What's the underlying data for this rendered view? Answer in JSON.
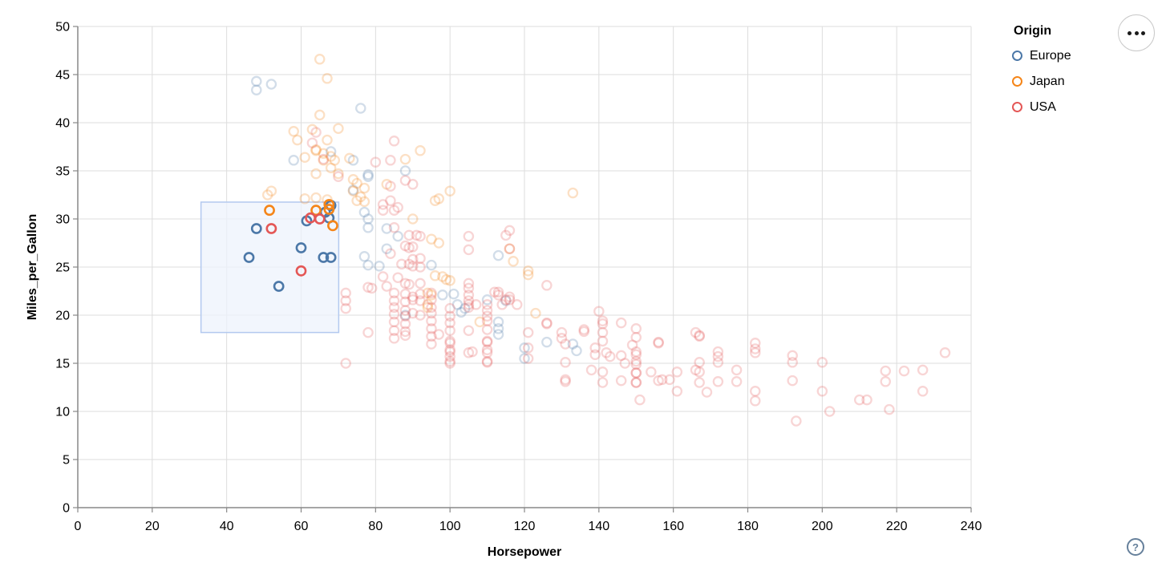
{
  "controls": {
    "menu_button": "actions-menu",
    "help_label": "?"
  },
  "chart_data": {
    "type": "scatter",
    "title": "",
    "xlabel": "Horsepower",
    "ylabel": "Miles_per_Gallon",
    "xlim": [
      0,
      240
    ],
    "ylim": [
      0,
      50
    ],
    "x_ticks": [
      0,
      20,
      40,
      60,
      80,
      100,
      120,
      140,
      160,
      180,
      200,
      220,
      240
    ],
    "y_ticks": [
      0,
      5,
      10,
      15,
      20,
      25,
      30,
      35,
      40,
      45,
      50
    ],
    "grid": true,
    "legend_title": "Origin",
    "legend_position": "top-right",
    "point_shape": "open-circle",
    "unselected_opacity": 0.25,
    "brush_selection": {
      "x": [
        33.1,
        70.1
      ],
      "y": [
        18.2,
        31.75
      ],
      "fill": "#edf3fc",
      "stroke": "#b3c9ef"
    },
    "colors": {
      "grid": "#dddddd",
      "axis": "#888888",
      "text": "#000000"
    },
    "series": [
      {
        "name": "Europe",
        "color": "#4c78a8",
        "selected_points": [
          [
            46,
            26
          ],
          [
            48,
            29
          ],
          [
            54,
            23
          ],
          [
            60,
            27
          ],
          [
            61.5,
            29.8
          ],
          [
            66,
            26
          ],
          [
            68,
            26
          ],
          [
            66.5,
            30.7
          ],
          [
            67.5,
            30.1
          ],
          [
            68,
            31.4
          ]
        ],
        "points": [
          [
            48,
            43.4
          ],
          [
            48,
            44.3
          ],
          [
            52,
            44
          ],
          [
            76,
            41.5
          ],
          [
            68,
            37
          ],
          [
            58,
            36.1
          ],
          [
            74,
            36.1
          ],
          [
            88,
            35
          ],
          [
            78,
            34.6
          ],
          [
            78,
            34.4
          ],
          [
            74,
            33
          ],
          [
            77,
            30.7
          ],
          [
            78,
            30
          ],
          [
            78,
            29.1
          ],
          [
            83,
            29
          ],
          [
            86,
            28.2
          ],
          [
            83,
            26.9
          ],
          [
            77,
            26.1
          ],
          [
            78,
            25.2
          ],
          [
            81,
            25.1
          ],
          [
            95,
            25.2
          ],
          [
            113,
            26.2
          ],
          [
            88,
            20
          ],
          [
            98,
            22.1
          ],
          [
            101,
            22.2
          ],
          [
            102,
            21.1
          ],
          [
            103,
            20.3
          ],
          [
            104,
            20.7
          ],
          [
            110,
            21.6
          ],
          [
            115,
            21.5
          ],
          [
            113,
            19.3
          ],
          [
            113,
            18.6
          ],
          [
            113,
            18
          ],
          [
            120,
            16.6
          ],
          [
            120,
            15.5
          ],
          [
            126,
            17.2
          ],
          [
            134,
            16.3
          ],
          [
            133,
            17
          ]
        ]
      },
      {
        "name": "Japan",
        "color": "#f58518",
        "selected_points": [
          [
            51.5,
            30.9
          ],
          [
            64,
            30.9
          ],
          [
            67.5,
            31.5
          ],
          [
            67.5,
            31
          ],
          [
            68.5,
            29.3
          ]
        ],
        "points": [
          [
            65,
            46.6
          ],
          [
            67,
            44.6
          ],
          [
            65,
            40.8
          ],
          [
            70,
            39.4
          ],
          [
            63,
            39.3
          ],
          [
            58,
            39.1
          ],
          [
            59,
            38.2
          ],
          [
            67,
            38.2
          ],
          [
            64,
            37.1
          ],
          [
            66,
            36.8
          ],
          [
            68,
            36.5
          ],
          [
            69,
            36.1
          ],
          [
            68,
            35.3
          ],
          [
            70,
            34.7
          ],
          [
            64,
            37.2
          ],
          [
            61,
            36.4
          ],
          [
            66,
            36.1
          ],
          [
            92,
            37.1
          ],
          [
            88,
            36.2
          ],
          [
            73,
            36.3
          ],
          [
            64,
            34.7
          ],
          [
            74,
            34.1
          ],
          [
            75,
            33.7
          ],
          [
            77,
            33.2
          ],
          [
            74,
            32.9
          ],
          [
            76,
            32.3
          ],
          [
            75,
            31.9
          ],
          [
            77,
            31.8
          ],
          [
            52,
            32.9
          ],
          [
            51,
            32.5
          ],
          [
            61,
            32.1
          ],
          [
            64,
            32.2
          ],
          [
            67,
            32
          ],
          [
            83,
            33.6
          ],
          [
            96,
            31.9
          ],
          [
            100,
            32.9
          ],
          [
            97,
            32.1
          ],
          [
            133,
            32.7
          ],
          [
            90,
            30
          ],
          [
            95,
            27.9
          ],
          [
            97,
            27.5
          ],
          [
            96,
            24.1
          ],
          [
            98,
            24
          ],
          [
            99,
            23.7
          ],
          [
            100,
            23.6
          ],
          [
            94,
            22.3
          ],
          [
            95,
            22.1
          ],
          [
            94,
            21.1
          ],
          [
            94,
            20.8
          ],
          [
            108,
            19.3
          ],
          [
            116,
            26.9
          ],
          [
            117,
            25.6
          ],
          [
            121,
            24.2
          ],
          [
            121,
            24.6
          ],
          [
            123,
            20.2
          ]
        ]
      },
      {
        "name": "USA",
        "color": "#e45756",
        "selected_points": [
          [
            52,
            29
          ],
          [
            60,
            24.6
          ],
          [
            62.5,
            30.1
          ],
          [
            65,
            30
          ]
        ],
        "points": [
          [
            85,
            38.1
          ],
          [
            84,
            36.1
          ],
          [
            80,
            35.9
          ],
          [
            64,
            39
          ],
          [
            63,
            37.9
          ],
          [
            66,
            36.2
          ],
          [
            70,
            34.4
          ],
          [
            88,
            34
          ],
          [
            90,
            33.6
          ],
          [
            84,
            33.4
          ],
          [
            84,
            31.9
          ],
          [
            82,
            31.5
          ],
          [
            86,
            31.2
          ],
          [
            82,
            30.9
          ],
          [
            85,
            30.9
          ],
          [
            85,
            29.1
          ],
          [
            89,
            28.3
          ],
          [
            91,
            28.3
          ],
          [
            92,
            28.2
          ],
          [
            105,
            28.2
          ],
          [
            115,
            28.3
          ],
          [
            116,
            28.8
          ],
          [
            116,
            26.9
          ],
          [
            88,
            27.2
          ],
          [
            90,
            27.1
          ],
          [
            89,
            27
          ],
          [
            105,
            26.8
          ],
          [
            84,
            26.4
          ],
          [
            87,
            25.3
          ],
          [
            89,
            25.3
          ],
          [
            90,
            25.1
          ],
          [
            92,
            25
          ],
          [
            90,
            25.8
          ],
          [
            92,
            25.9
          ],
          [
            82,
            24
          ],
          [
            86,
            23.9
          ],
          [
            88,
            23.3
          ],
          [
            89,
            23.2
          ],
          [
            92,
            23.3
          ],
          [
            105,
            23.3
          ],
          [
            105,
            22.8
          ],
          [
            78,
            22.9
          ],
          [
            79,
            22.8
          ],
          [
            83,
            23
          ],
          [
            72,
            22.3
          ],
          [
            72,
            21.5
          ],
          [
            72,
            20.7
          ],
          [
            78,
            18.2
          ],
          [
            97,
            18
          ],
          [
            113,
            22.4
          ],
          [
            116,
            21.6
          ],
          [
            115,
            21.6
          ],
          [
            72,
            15
          ],
          [
            85,
            22.3
          ],
          [
            85,
            21.5
          ],
          [
            85,
            20.8
          ],
          [
            85,
            20.1
          ],
          [
            85,
            19.3
          ],
          [
            85,
            18.4
          ],
          [
            85,
            17.6
          ],
          [
            88,
            22.2
          ],
          [
            88,
            21.4
          ],
          [
            88,
            20.5
          ],
          [
            88,
            19.9
          ],
          [
            88,
            19.1
          ],
          [
            88,
            18.3
          ],
          [
            88,
            17.9
          ],
          [
            90,
            21.9
          ],
          [
            90,
            21.6
          ],
          [
            92,
            21.5
          ],
          [
            92,
            22.2
          ],
          [
            90,
            20.2
          ],
          [
            92,
            20
          ],
          [
            95,
            22.3
          ],
          [
            95,
            21.6
          ],
          [
            95,
            20.8
          ],
          [
            95,
            20.2
          ],
          [
            95,
            19.4
          ],
          [
            95,
            18.6
          ],
          [
            95,
            17.8
          ],
          [
            95,
            17
          ],
          [
            100,
            20.7
          ],
          [
            100,
            19.9
          ],
          [
            100,
            19.2
          ],
          [
            100,
            18.4
          ],
          [
            100,
            17.3
          ],
          [
            100,
            16.2
          ],
          [
            100,
            15.2
          ],
          [
            100,
            17.1
          ],
          [
            100,
            16.4
          ],
          [
            100,
            15.7
          ],
          [
            100,
            15
          ],
          [
            105,
            20.8
          ],
          [
            105,
            21.1
          ],
          [
            105,
            18.4
          ],
          [
            105,
            16.1
          ],
          [
            106,
            16.2
          ],
          [
            105,
            22.1
          ],
          [
            105,
            21.5
          ],
          [
            110,
            20.5
          ],
          [
            110,
            19.9
          ],
          [
            110,
            19.4
          ],
          [
            110,
            18.5
          ],
          [
            110,
            17.3
          ],
          [
            110,
            16.4
          ],
          [
            110,
            15.2
          ],
          [
            110,
            17.2
          ],
          [
            110,
            16.1
          ],
          [
            110,
            15.1
          ],
          [
            110,
            21.1
          ],
          [
            107,
            21.1
          ],
          [
            114,
            21.1
          ],
          [
            113,
            22.1
          ],
          [
            116,
            21.9
          ],
          [
            118,
            21.1
          ],
          [
            112,
            22.4
          ],
          [
            121,
            18.2
          ],
          [
            121,
            16.6
          ],
          [
            121,
            15.5
          ],
          [
            126,
            19.2
          ],
          [
            126,
            19.1
          ],
          [
            130,
            17.6
          ],
          [
            130,
            18.2
          ],
          [
            131,
            17
          ],
          [
            131,
            15.1
          ],
          [
            131,
            13.3
          ],
          [
            131,
            13.1
          ],
          [
            136,
            18.5
          ],
          [
            136,
            18.3
          ],
          [
            139,
            16.6
          ],
          [
            139,
            15.9
          ],
          [
            141,
            18.2
          ],
          [
            141,
            17.3
          ],
          [
            142,
            16.1
          ],
          [
            141,
            19.1
          ],
          [
            143,
            15.7
          ],
          [
            146,
            15.8
          ],
          [
            147,
            15
          ],
          [
            146,
            13.2
          ],
          [
            138,
            14.3
          ],
          [
            141,
            14.1
          ],
          [
            141,
            13
          ],
          [
            149,
            16.9
          ],
          [
            140,
            20.4
          ],
          [
            141,
            19.4
          ],
          [
            146,
            19.2
          ],
          [
            126,
            23.1
          ],
          [
            150,
            18.6
          ],
          [
            150,
            17.7
          ],
          [
            150,
            16.2
          ],
          [
            150,
            15.9
          ],
          [
            150,
            15.2
          ],
          [
            150,
            14.9
          ],
          [
            150,
            14
          ],
          [
            150,
            14
          ],
          [
            150,
            13
          ],
          [
            150,
            13
          ],
          [
            151,
            11.2
          ],
          [
            154,
            14.1
          ],
          [
            156,
            17.1
          ],
          [
            156,
            13.2
          ],
          [
            157,
            13.3
          ],
          [
            159,
            13.3
          ],
          [
            161,
            14.1
          ],
          [
            161,
            12.1
          ],
          [
            166,
            18.2
          ],
          [
            166,
            14.3
          ],
          [
            167,
            17.9
          ],
          [
            156,
            17.2
          ],
          [
            167,
            17.8
          ],
          [
            172,
            16.2
          ],
          [
            172,
            15.7
          ],
          [
            172,
            15.1
          ],
          [
            182,
            16.5
          ],
          [
            182,
            16.1
          ],
          [
            167,
            15.1
          ],
          [
            167,
            14.1
          ],
          [
            167,
            13
          ],
          [
            169,
            12
          ],
          [
            172,
            13.1
          ],
          [
            177,
            14.3
          ],
          [
            177,
            13.1
          ],
          [
            182,
            12.1
          ],
          [
            182,
            11.1
          ],
          [
            182,
            17.1
          ],
          [
            192,
            15.8
          ],
          [
            192,
            15.1
          ],
          [
            192,
            13.2
          ],
          [
            193,
            9
          ],
          [
            200,
            15.1
          ],
          [
            200,
            12.1
          ],
          [
            202,
            10
          ],
          [
            210,
            11.2
          ],
          [
            212,
            11.2
          ],
          [
            217,
            14.2
          ],
          [
            217,
            13.1
          ],
          [
            218,
            10.2
          ],
          [
            222,
            14.2
          ],
          [
            227,
            14.3
          ],
          [
            227,
            12.1
          ],
          [
            233,
            16.1
          ]
        ]
      }
    ]
  }
}
